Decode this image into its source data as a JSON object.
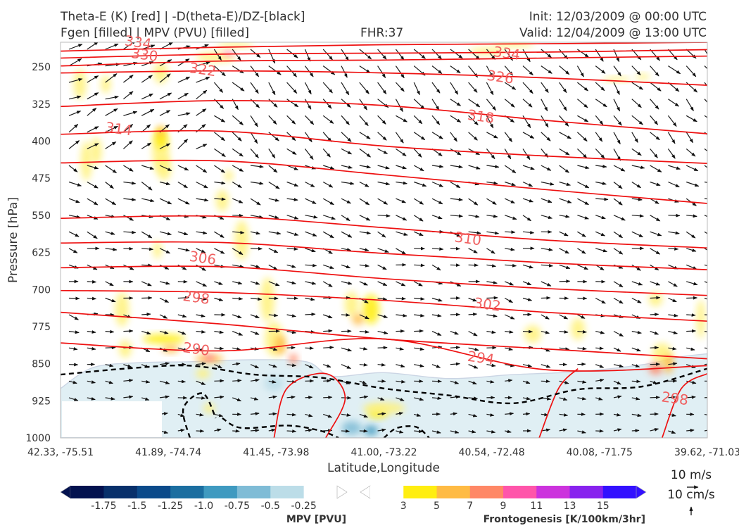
{
  "header": {
    "title_left_line1": "Theta-E (K) [red] | -D(theta-E)/DZ-[black]",
    "title_left_line2": "Fgen [filled] | MPV (PVU) [filled]",
    "fhr": "FHR:37",
    "init": "Init: 12/03/2009 @ 00:00 UTC",
    "valid": "Valid: 12/04/2009 @ 13:00 UTC"
  },
  "chart_data": {
    "type": "cross-section",
    "xlabel": "Latitude,Longitude",
    "ylabel": "Pressure [hPa]",
    "x_ticks": [
      "42.33, -75.51",
      "41.89, -74.74",
      "41.45, -73.98",
      "41.00, -73.22",
      "40.54, -72.48",
      "40.08, -71.75",
      "39.62, -71.03"
    ],
    "y_ticks": [
      250,
      325,
      400,
      475,
      550,
      625,
      700,
      775,
      850,
      925,
      1000
    ],
    "ylim": [
      200,
      1000
    ],
    "y_inverted": true,
    "theta_e_contours": {
      "color": "#ee1111",
      "labels": [
        {
          "text": "334",
          "tx": 0.12,
          "p": 200
        },
        {
          "text": "330",
          "tx": 0.13,
          "p": 225
        },
        {
          "text": "322",
          "tx": 0.22,
          "p": 255
        },
        {
          "text": "314",
          "tx": 0.09,
          "p": 375
        },
        {
          "text": "306",
          "tx": 0.22,
          "p": 636
        },
        {
          "text": "298",
          "tx": 0.21,
          "p": 716
        },
        {
          "text": "290",
          "tx": 0.21,
          "p": 820
        },
        {
          "text": "334",
          "tx": 0.69,
          "p": 222
        },
        {
          "text": "326",
          "tx": 0.68,
          "p": 270
        },
        {
          "text": "318",
          "tx": 0.65,
          "p": 350
        },
        {
          "text": "310",
          "tx": 0.63,
          "p": 597
        },
        {
          "text": "302",
          "tx": 0.66,
          "p": 730
        },
        {
          "text": "294",
          "tx": 0.65,
          "p": 838
        },
        {
          "text": "298",
          "tx": 0.95,
          "p": 920
        }
      ],
      "lines": [
        [
          [
            0.0,
            218
          ],
          [
            0.25,
            210
          ],
          [
            0.5,
            205
          ],
          [
            0.75,
            203
          ],
          [
            1.0,
            200
          ]
        ],
        [
          [
            0.0,
            232
          ],
          [
            0.25,
            224
          ],
          [
            0.5,
            222
          ],
          [
            0.75,
            220
          ],
          [
            1.0,
            215
          ]
        ],
        [
          [
            0.0,
            248
          ],
          [
            0.25,
            238
          ],
          [
            0.5,
            236
          ],
          [
            0.75,
            232
          ],
          [
            1.0,
            228
          ]
        ],
        [
          [
            0.0,
            262
          ],
          [
            0.25,
            258
          ],
          [
            0.5,
            262
          ],
          [
            0.75,
            272
          ],
          [
            1.0,
            287
          ]
        ],
        [
          [
            0.0,
            330
          ],
          [
            0.25,
            318
          ],
          [
            0.5,
            328
          ],
          [
            0.75,
            358
          ],
          [
            1.0,
            385
          ]
        ],
        [
          [
            0.0,
            386
          ],
          [
            0.25,
            380
          ],
          [
            0.5,
            410
          ],
          [
            0.75,
            430
          ],
          [
            1.0,
            445
          ]
        ],
        [
          [
            0.0,
            444
          ],
          [
            0.25,
            440
          ],
          [
            0.5,
            468
          ],
          [
            0.75,
            498
          ],
          [
            1.0,
            526
          ]
        ],
        [
          [
            0.0,
            556
          ],
          [
            0.25,
            552
          ],
          [
            0.5,
            575
          ],
          [
            0.75,
            600
          ],
          [
            1.0,
            616
          ]
        ],
        [
          [
            0.0,
            606
          ],
          [
            0.25,
            605
          ],
          [
            0.5,
            627
          ],
          [
            0.75,
            646
          ],
          [
            1.0,
            660
          ]
        ],
        [
          [
            0.0,
            656
          ],
          [
            0.25,
            654
          ],
          [
            0.5,
            678
          ],
          [
            0.75,
            698
          ],
          [
            1.0,
            712
          ]
        ],
        [
          [
            0.0,
            702
          ],
          [
            0.25,
            706
          ],
          [
            0.5,
            722
          ],
          [
            0.75,
            746
          ],
          [
            1.0,
            764
          ]
        ],
        [
          [
            0.0,
            746
          ],
          [
            0.25,
            770
          ],
          [
            0.5,
            800
          ],
          [
            0.75,
            820
          ],
          [
            1.0,
            840
          ]
        ],
        [
          [
            0.0,
            808
          ],
          [
            0.25,
            824
          ],
          [
            0.5,
            800
          ],
          [
            0.75,
            862
          ],
          [
            1.0,
            854
          ]
        ]
      ]
    },
    "neg_dthetae_dz_contour": {
      "color": "#000000",
      "style": "dashed",
      "points": [
        [
          0.0,
          872
        ],
        [
          0.1,
          860
        ],
        [
          0.2,
          854
        ],
        [
          0.3,
          872
        ],
        [
          0.4,
          878
        ],
        [
          0.5,
          900
        ],
        [
          0.6,
          914
        ],
        [
          0.7,
          930
        ],
        [
          0.8,
          902
        ],
        [
          0.9,
          896
        ],
        [
          1.0,
          860
        ]
      ]
    },
    "mpv_colorbar": {
      "title": "MPV [PVU]",
      "ticks": [
        "-1.75",
        "-1.5",
        "-1.25",
        "-1.0",
        "-0.75",
        "-0.5",
        "-0.25"
      ],
      "colors": [
        "#03124f",
        "#08306b",
        "#0b4a8a",
        "#1b6ea0",
        "#3f9ac0",
        "#7fbcd6",
        "#bcdde8",
        "#ffffff"
      ]
    },
    "fgen_colorbar": {
      "title": "Frontogenesis [K/100km/3hr]",
      "ticks": [
        "3",
        "5",
        "7",
        "9",
        "11",
        "13",
        "15"
      ],
      "colors": [
        "#ffffff",
        "#ffee11",
        "#ffbb44",
        "#ff8866",
        "#ff55aa",
        "#cc33dd",
        "#8822ee",
        "#3311ff"
      ]
    },
    "reference_vectors": {
      "horizontal": "10 m/s",
      "vertical": "10 cm/s"
    }
  }
}
